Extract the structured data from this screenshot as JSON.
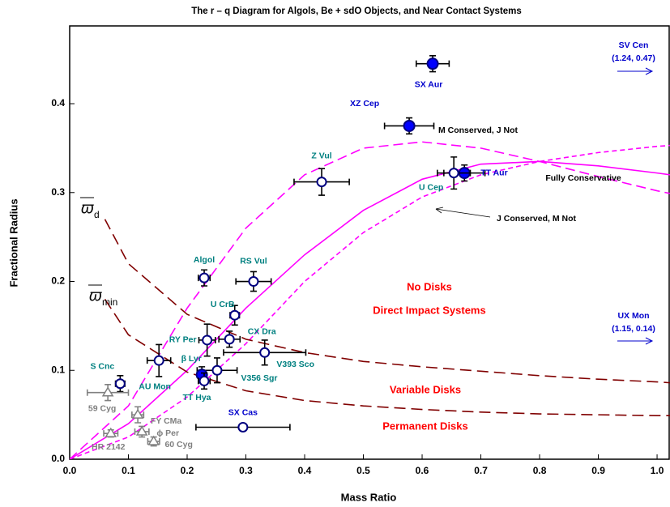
{
  "chart_data": {
    "type": "scatter",
    "title": "The r – q Diagram for Algols, Be + sdO Objects, and Near Contact Systems",
    "xlabel": "Mass Ratio",
    "ylabel": "Fractional Radius",
    "xlim": [
      0,
      1.022
    ],
    "ylim": [
      0,
      0.4875
    ],
    "xticks": [
      {
        "value": 0,
        "label": "0.0"
      },
      0.1,
      0.2,
      0.3,
      0.4,
      0.5,
      0.6,
      0.7,
      0.8,
      0.9,
      {
        "value": 1,
        "label": "1.0"
      }
    ],
    "yticks": [
      {
        "value": 0,
        "label": "0.0"
      },
      0.1,
      0.2,
      0.3,
      0.4
    ],
    "points": [
      {
        "name": "SX Aur",
        "x": 0.618,
        "y": 0.445,
        "xerr": 0.028,
        "yerr": 0.009,
        "fill": "#0000ff",
        "label_color": "#0000cc"
      },
      {
        "name": "XZ Cep",
        "x": 0.578,
        "y": 0.375,
        "xerr": 0.042,
        "yerr": 0.009,
        "fill": "#0000ff",
        "label_color": "#0000cc"
      },
      {
        "name": "Z Vul",
        "x": 0.429,
        "y": 0.312,
        "xerr": 0.047,
        "yerr": 0.015,
        "fill": "#ffffff",
        "label_color": "#008080"
      },
      {
        "name": "TT Aur",
        "x": 0.672,
        "y": 0.322,
        "xerr": 0.035,
        "yerr": 0.009,
        "fill": "#0000ff",
        "label_color": "#0000cc"
      },
      {
        "name": "U Cep",
        "x": 0.654,
        "y": 0.322,
        "xerr": 0.028,
        "yerr": 0.018,
        "fill": "#ffffff",
        "label_color": "#008080"
      },
      {
        "name": "Algol",
        "x": 0.229,
        "y": 0.204,
        "xerr": 0.01,
        "yerr": 0.009,
        "fill": "#ffffff",
        "label_color": "#008080"
      },
      {
        "name": "RS Vul",
        "x": 0.313,
        "y": 0.2,
        "xerr": 0.03,
        "yerr": 0.011,
        "fill": "#ffffff",
        "label_color": "#008080"
      },
      {
        "name": "U CrB",
        "x": 0.281,
        "y": 0.162,
        "xerr": 0.008,
        "yerr": 0.011,
        "fill": "#ffffff",
        "label_color": "#008080"
      },
      {
        "name": "CX Dra",
        "x": 0.272,
        "y": 0.135,
        "xerr": 0.018,
        "yerr": 0.009,
        "fill": "#ffffff",
        "label_color": "#008080"
      },
      {
        "name": "RY Per",
        "x": 0.234,
        "y": 0.134,
        "xerr": 0.014,
        "yerr": 0.018,
        "fill": "#ffffff",
        "label_color": "#008080"
      },
      {
        "name": "V393 Sco",
        "x": 0.332,
        "y": 0.12,
        "xerr": 0.07,
        "yerr": 0.014,
        "fill": "#ffffff",
        "label_color": "#008080"
      },
      {
        "name": "β Lyr",
        "x": 0.152,
        "y": 0.111,
        "xerr": 0.02,
        "yerr": 0.018,
        "fill": "#ffffff",
        "label_color": "#008080"
      },
      {
        "name": "V356 Sgr",
        "x": 0.251,
        "y": 0.1,
        "xerr": 0.034,
        "yerr": 0.014,
        "fill": "#ffffff",
        "label_color": "#008080"
      },
      {
        "name": "AU Mon",
        "x": 0.225,
        "y": 0.095,
        "xerr": 0.008,
        "yerr": 0.009,
        "fill": "#0000ff",
        "label_color": "#008080"
      },
      {
        "name": "TT Hya",
        "x": 0.229,
        "y": 0.088,
        "xerr": 0.01,
        "yerr": 0.009,
        "fill": "#ffffff",
        "label_color": "#008080"
      },
      {
        "name": "S Cnc",
        "x": 0.086,
        "y": 0.085,
        "xerr": 0.008,
        "yerr": 0.009,
        "fill": "#ffffff",
        "label_color": "#008080"
      },
      {
        "name": "SX Cas",
        "x": 0.295,
        "y": 0.036,
        "xerr": 0.08,
        "yerr": 0.004,
        "fill": "#ffffff",
        "label_color": "#0000cc"
      },
      {
        "name": "59 Cyg",
        "x": 0.065,
        "y": 0.075,
        "xerr": 0.035,
        "yerr": 0.009,
        "fill": "triangle",
        "label_color": "#808080"
      },
      {
        "name": "FY CMa",
        "x": 0.116,
        "y": 0.05,
        "xerr": 0.01,
        "yerr": 0.009,
        "fill": "triangle",
        "label_color": "#808080"
      },
      {
        "name": "ϕ Per",
        "x": 0.123,
        "y": 0.031,
        "xerr": 0.012,
        "yerr": 0.006,
        "fill": "triangle",
        "label_color": "#808080"
      },
      {
        "name": "60 Cyg",
        "x": 0.143,
        "y": 0.02,
        "xerr": 0.01,
        "yerr": 0.005,
        "fill": "triangle",
        "label_color": "#808080"
      },
      {
        "name": "HR 2142",
        "x": 0.07,
        "y": 0.029,
        "xerr": 0.012,
        "yerr": 0.004,
        "fill": "triangle",
        "label_color": "#808080"
      }
    ],
    "curves": [
      {
        "name": "Fully Conservative",
        "color": "#ff00ff",
        "dash": "none",
        "x": [
          0,
          0.1,
          0.2,
          0.3,
          0.4,
          0.5,
          0.6,
          0.7,
          0.8,
          0.9,
          1.0,
          1.022
        ],
        "y": [
          0,
          0.04,
          0.1,
          0.17,
          0.23,
          0.28,
          0.315,
          0.332,
          0.335,
          0.33,
          0.322,
          0.32
        ]
      },
      {
        "name": "M Conserved, J Not",
        "color": "#ff00ff",
        "dash": "12 6",
        "x": [
          0,
          0.1,
          0.2,
          0.3,
          0.4,
          0.5,
          0.6,
          0.7,
          0.8,
          0.9,
          1.0,
          1.022
        ],
        "y": [
          0,
          0.06,
          0.17,
          0.26,
          0.32,
          0.35,
          0.357,
          0.35,
          0.335,
          0.318,
          0.302,
          0.299
        ]
      },
      {
        "name": "J Conserved, M Not",
        "color": "#ff00ff",
        "dash": "6 4",
        "x": [
          0,
          0.1,
          0.2,
          0.3,
          0.4,
          0.5,
          0.6,
          0.7,
          0.8,
          0.9,
          1.0,
          1.022
        ],
        "y": [
          0,
          0.025,
          0.07,
          0.13,
          0.2,
          0.255,
          0.295,
          0.32,
          0.335,
          0.345,
          0.352,
          0.353
        ]
      },
      {
        "symbol": "ϖ",
        "subscript": "d",
        "color": "#800000",
        "dash": "14 7",
        "x": [
          0.06,
          0.1,
          0.2,
          0.3,
          0.4,
          0.5,
          0.6,
          0.7,
          0.8,
          0.9,
          1.0,
          1.022
        ],
        "y": [
          0.27,
          0.22,
          0.163,
          0.135,
          0.12,
          0.11,
          0.104,
          0.099,
          0.094,
          0.09,
          0.087,
          0.086
        ]
      },
      {
        "symbol": "ϖ",
        "subscript": "min",
        "color": "#800000",
        "dash": "14 7",
        "x": [
          0.06,
          0.1,
          0.2,
          0.3,
          0.4,
          0.5,
          0.6,
          0.7,
          0.8,
          0.9,
          1.0,
          1.022
        ],
        "y": [
          0.18,
          0.14,
          0.098,
          0.077,
          0.066,
          0.06,
          0.056,
          0.053,
          0.051,
          0.05,
          0.049,
          0.049
        ]
      }
    ],
    "annotations": [
      {
        "text": "No Disks",
        "color": "#ff0000"
      },
      {
        "text": "Direct Impact Systems",
        "color": "#ff0000"
      },
      {
        "text": "Variable Disks",
        "color": "#ff0000"
      },
      {
        "text": "Permanent Disks",
        "color": "#ff0000"
      },
      {
        "text": "SV Cen",
        "color": "#0000cc"
      },
      {
        "text": "(1.24, 0.47)",
        "color": "#0000cc"
      },
      {
        "text": "UX Mon",
        "color": "#0000cc"
      },
      {
        "text": "(1.15, 0.14)",
        "color": "#0000cc"
      }
    ]
  }
}
